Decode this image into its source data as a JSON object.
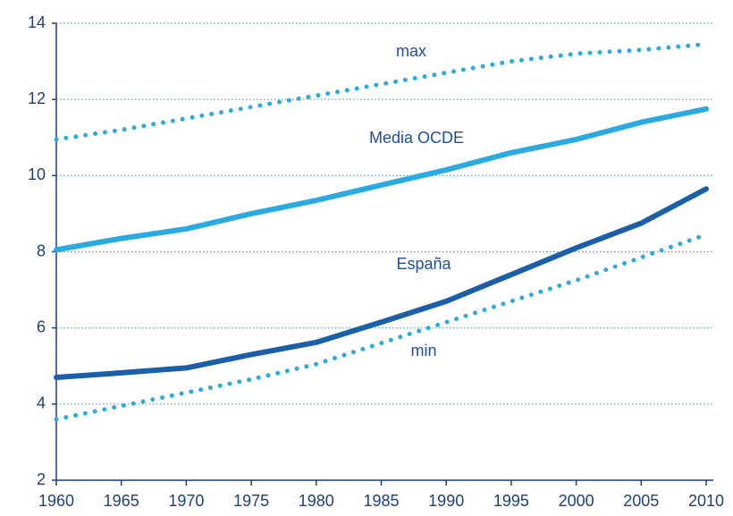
{
  "chart_data": {
    "type": "line",
    "x": [
      1960,
      1965,
      1970,
      1975,
      1980,
      1985,
      1990,
      1995,
      2000,
      2005,
      2010
    ],
    "series": [
      {
        "name": "max",
        "color": "#29aae1",
        "style": "dotted",
        "values": [
          10.95,
          11.2,
          11.5,
          11.8,
          12.1,
          12.4,
          12.7,
          13.0,
          13.2,
          13.3,
          13.45
        ]
      },
      {
        "name": "Media OCDE",
        "color": "#29aae1",
        "style": "solid",
        "values": [
          8.05,
          8.35,
          8.6,
          9.0,
          9.35,
          9.75,
          10.15,
          10.6,
          10.95,
          11.4,
          11.75
        ]
      },
      {
        "name": "España",
        "color": "#1a5fa8",
        "style": "solid",
        "values": [
          4.7,
          4.82,
          4.95,
          5.3,
          5.62,
          6.15,
          6.7,
          7.4,
          8.1,
          8.75,
          9.65
        ]
      },
      {
        "name": "min",
        "color": "#29aae1",
        "style": "dotted",
        "values": [
          3.6,
          3.95,
          4.3,
          4.65,
          5.05,
          5.6,
          6.15,
          6.7,
          7.25,
          7.85,
          8.45
        ]
      }
    ],
    "xlim": [
      1960,
      2010
    ],
    "xticks": [
      1960,
      1965,
      1970,
      1975,
      1980,
      1985,
      1990,
      1995,
      2000,
      2005,
      2010
    ],
    "ylim": [
      2,
      14
    ],
    "yticks": [
      2,
      4,
      6,
      8,
      10,
      12,
      14
    ],
    "grid": true
  }
}
